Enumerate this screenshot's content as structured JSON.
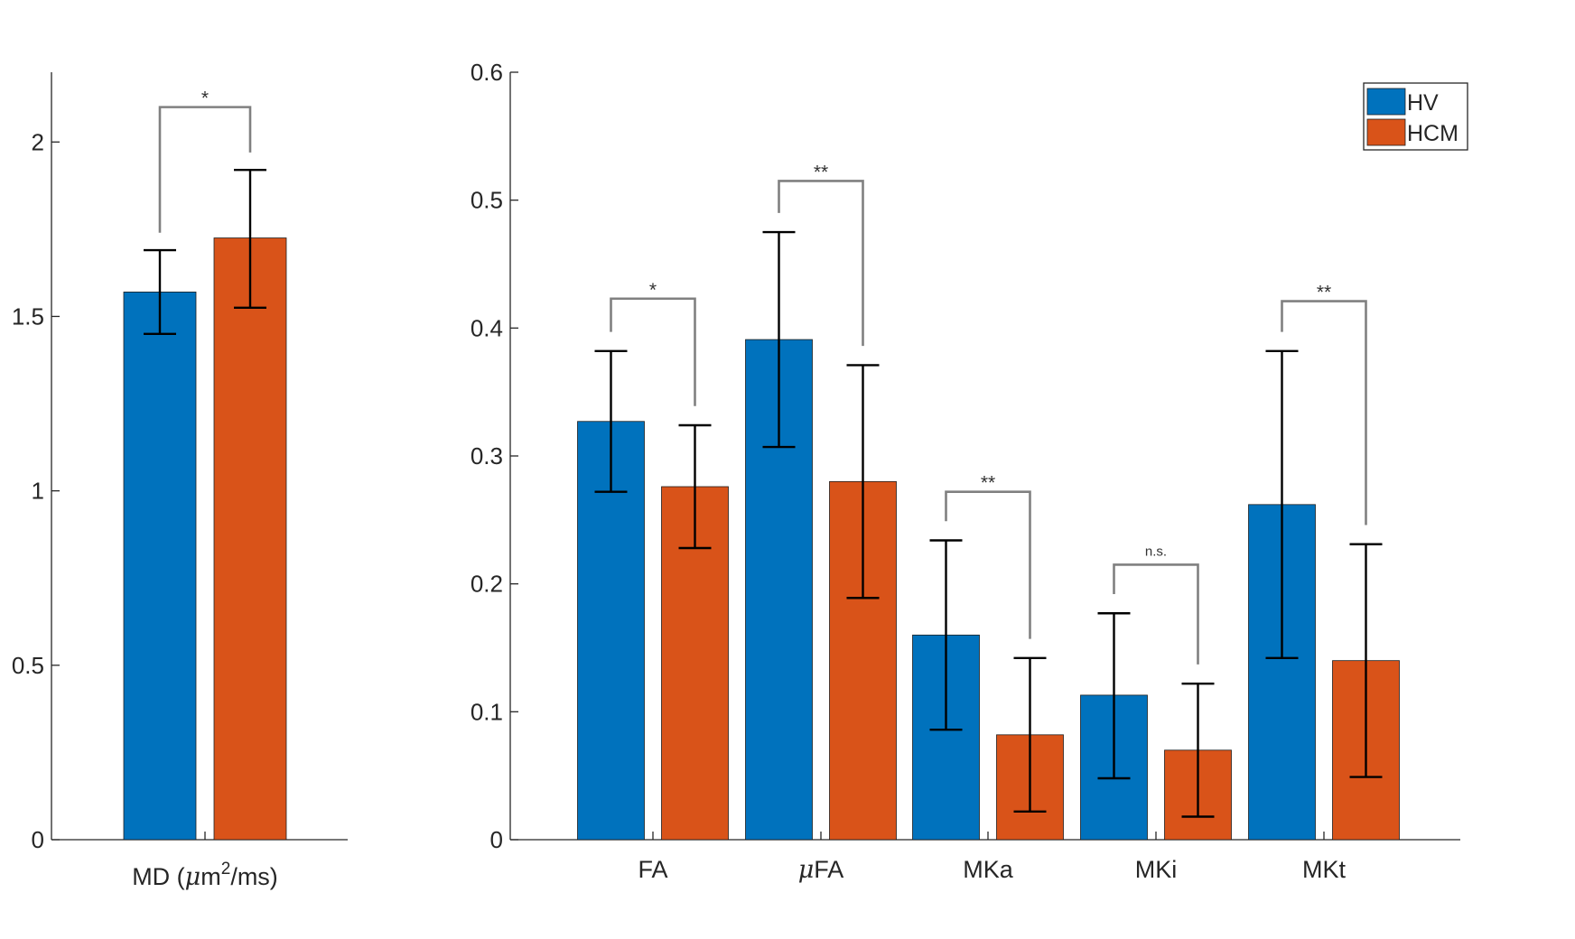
{
  "chart_data": [
    {
      "type": "bar",
      "categories": [
        "MD (μm²/ms)"
      ],
      "xtick_parts": {
        "pre": "MD (",
        "mu": "μ",
        "mid": "m",
        "sup": "2",
        "post": "/ms)"
      },
      "series": [
        {
          "name": "HV",
          "values": [
            1.57
          ],
          "err_low": [
            1.45
          ],
          "err_high": [
            1.69
          ],
          "color": "#0072BD"
        },
        {
          "name": "HCM",
          "values": [
            1.725
          ],
          "err_low": [
            1.525
          ],
          "err_high": [
            1.92
          ],
          "color": "#D95319"
        }
      ],
      "ylim": [
        0,
        2.2
      ],
      "yticks": [
        0,
        0.5,
        1,
        1.5,
        2
      ],
      "ytick_labels": [
        "0",
        "0.5",
        "1",
        "1.5",
        "2"
      ],
      "significance": [
        {
          "label": "*",
          "hv_top": 1.74,
          "hcm_top": 1.97,
          "bracket": 2.1
        }
      ],
      "grid": false,
      "xlabel": "",
      "ylabel": ""
    },
    {
      "type": "bar",
      "categories": [
        "FA",
        "μFA",
        "MKa",
        "MKi",
        "MKt"
      ],
      "series": [
        {
          "name": "HV",
          "values": [
            0.327,
            0.391,
            0.16,
            0.113,
            0.262
          ],
          "err_low": [
            0.272,
            0.307,
            0.086,
            0.048,
            0.142
          ],
          "err_high": [
            0.382,
            0.475,
            0.234,
            0.177,
            0.382
          ],
          "color": "#0072BD"
        },
        {
          "name": "HCM",
          "values": [
            0.276,
            0.28,
            0.082,
            0.07,
            0.14
          ],
          "err_low": [
            0.228,
            0.189,
            0.022,
            0.018,
            0.049
          ],
          "err_high": [
            0.324,
            0.371,
            0.142,
            0.122,
            0.231
          ],
          "color": "#D95319"
        }
      ],
      "ylim": [
        0,
        0.6
      ],
      "yticks": [
        0,
        0.1,
        0.2,
        0.3,
        0.4,
        0.5,
        0.6
      ],
      "ytick_labels": [
        "0",
        "0.1",
        "0.2",
        "0.3",
        "0.4",
        "0.5",
        "0.6"
      ],
      "significance": [
        {
          "label": "*",
          "hv_top": 0.397,
          "hcm_top": 0.339,
          "bracket": 0.423
        },
        {
          "label": "**",
          "hv_top": 0.49,
          "hcm_top": 0.386,
          "bracket": 0.515
        },
        {
          "label": "**",
          "hv_top": 0.249,
          "hcm_top": 0.157,
          "bracket": 0.272
        },
        {
          "label": "n.s.",
          "hv_top": 0.192,
          "hcm_top": 0.137,
          "bracket": 0.215
        },
        {
          "label": "**",
          "hv_top": 0.397,
          "hcm_top": 0.246,
          "bracket": 0.421
        }
      ],
      "legend": {
        "position": "top-right",
        "entries": [
          "HV",
          "HCM"
        ]
      },
      "grid": false,
      "xlabel": "",
      "ylabel": ""
    }
  ]
}
